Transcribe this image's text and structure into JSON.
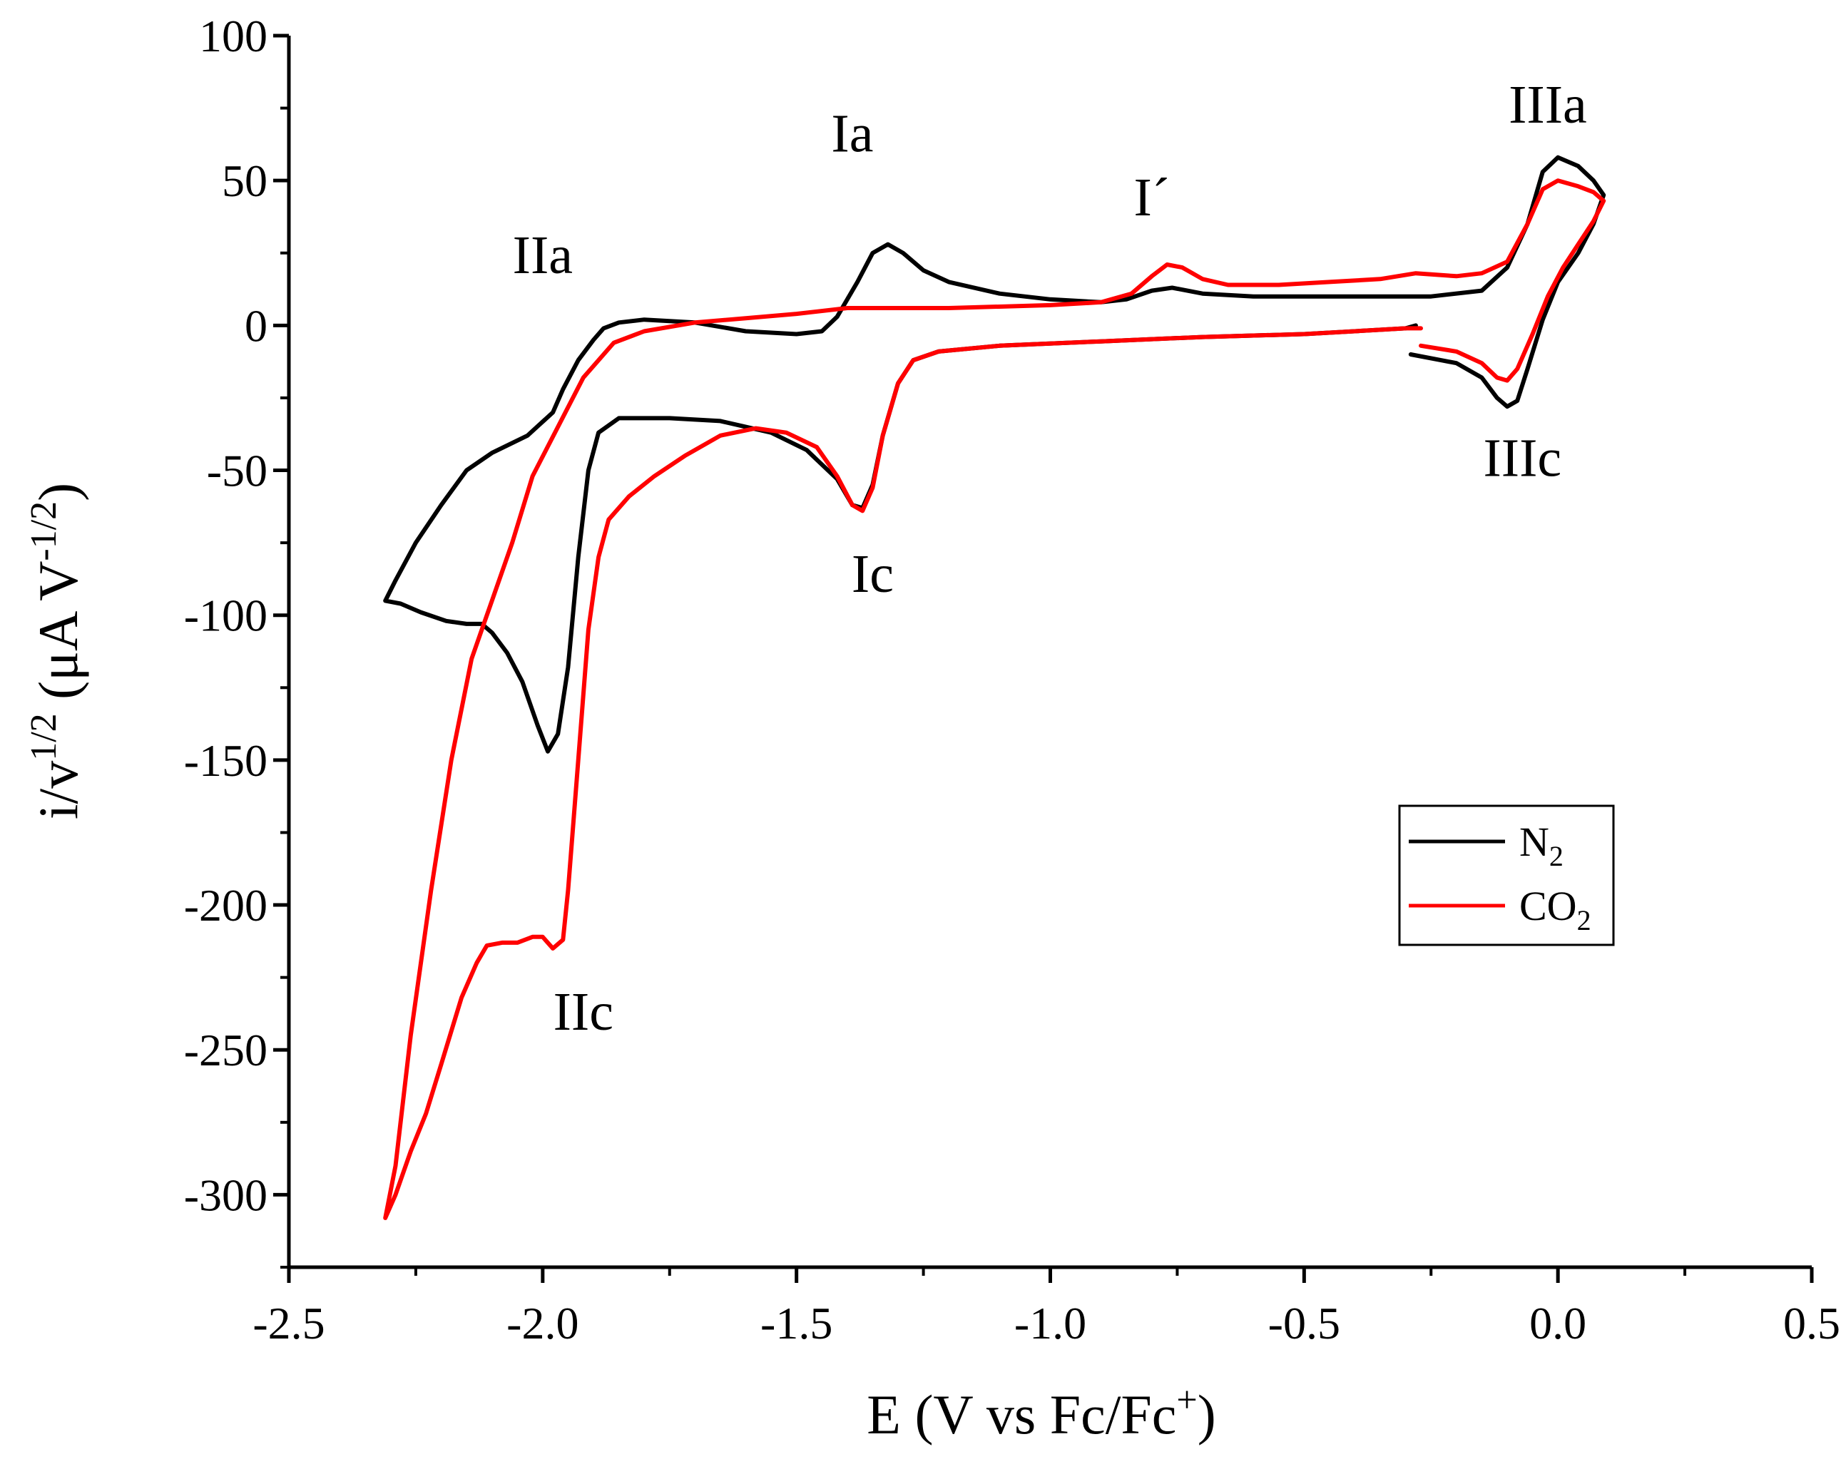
{
  "chart_data": {
    "type": "line",
    "title": "",
    "xlabel": {
      "main": "E (V vs Fc/Fc",
      "sup": "+",
      "end": ")"
    },
    "ylabel": {
      "p1": "i/v",
      "sup1": "1/2",
      "p2": " (μA V",
      "sup2": "-1/2",
      "p3": ")"
    },
    "xlim": [
      -2.5,
      0.5
    ],
    "ylim": [
      -325,
      100
    ],
    "xticks": [
      -2.5,
      -2.0,
      -1.5,
      -1.0,
      -0.5,
      0.0,
      0.5
    ],
    "xtick_labels": [
      "-2.5",
      "-2.0",
      "-1.5",
      "-1.0",
      "-0.5",
      "0.0",
      "0.5"
    ],
    "yticks": [
      -300,
      -250,
      -200,
      -150,
      -100,
      -50,
      0,
      50,
      100
    ],
    "ytick_labels": [
      "-300",
      "-250",
      "-200",
      "-150",
      "-100",
      "-50",
      "0",
      "50",
      "100"
    ],
    "legend_position": "right-middle",
    "series": [
      {
        "name": "N",
        "name_sub": "2",
        "color": "#000000",
        "points": [
          [
            -0.29,
            -10
          ],
          [
            -0.2,
            -13
          ],
          [
            -0.15,
            -18
          ],
          [
            -0.12,
            -25
          ],
          [
            -0.1,
            -28
          ],
          [
            -0.08,
            -26
          ],
          [
            -0.06,
            -15
          ],
          [
            -0.03,
            2
          ],
          [
            0.0,
            15
          ],
          [
            0.04,
            25
          ],
          [
            0.07,
            35
          ],
          [
            0.09,
            45
          ],
          [
            0.07,
            50
          ],
          [
            0.04,
            55
          ],
          [
            0.0,
            58
          ],
          [
            -0.03,
            53
          ],
          [
            -0.06,
            35
          ],
          [
            -0.1,
            20
          ],
          [
            -0.15,
            12
          ],
          [
            -0.25,
            10
          ],
          [
            -0.4,
            10
          ],
          [
            -0.6,
            10
          ],
          [
            -0.7,
            11
          ],
          [
            -0.76,
            13
          ],
          [
            -0.8,
            12
          ],
          [
            -0.85,
            9
          ],
          [
            -0.9,
            8
          ],
          [
            -1.0,
            9
          ],
          [
            -1.1,
            11
          ],
          [
            -1.2,
            15
          ],
          [
            -1.25,
            19
          ],
          [
            -1.29,
            25
          ],
          [
            -1.32,
            28
          ],
          [
            -1.35,
            25
          ],
          [
            -1.38,
            15
          ],
          [
            -1.42,
            3
          ],
          [
            -1.45,
            -2
          ],
          [
            -1.5,
            -3
          ],
          [
            -1.6,
            -2
          ],
          [
            -1.7,
            1
          ],
          [
            -1.8,
            2
          ],
          [
            -1.85,
            1
          ],
          [
            -1.88,
            -1
          ],
          [
            -1.9,
            -5
          ],
          [
            -1.93,
            -12
          ],
          [
            -1.96,
            -22
          ],
          [
            -1.98,
            -30
          ],
          [
            -2.03,
            -38
          ],
          [
            -2.1,
            -44
          ],
          [
            -2.15,
            -50
          ],
          [
            -2.2,
            -62
          ],
          [
            -2.25,
            -75
          ],
          [
            -2.29,
            -88
          ],
          [
            -2.31,
            -95
          ],
          [
            -2.28,
            -96
          ],
          [
            -2.24,
            -99
          ],
          [
            -2.19,
            -102
          ],
          [
            -2.15,
            -103
          ],
          [
            -2.12,
            -103
          ],
          [
            -2.1,
            -106
          ],
          [
            -2.07,
            -113
          ],
          [
            -2.04,
            -123
          ],
          [
            -2.01,
            -138
          ],
          [
            -1.99,
            -147
          ],
          [
            -1.97,
            -141
          ],
          [
            -1.95,
            -118
          ],
          [
            -1.93,
            -80
          ],
          [
            -1.91,
            -50
          ],
          [
            -1.89,
            -37
          ],
          [
            -1.85,
            -32
          ],
          [
            -1.75,
            -32
          ],
          [
            -1.65,
            -33
          ],
          [
            -1.55,
            -37
          ],
          [
            -1.48,
            -43
          ],
          [
            -1.42,
            -53
          ],
          [
            -1.39,
            -62
          ],
          [
            -1.37,
            -63
          ],
          [
            -1.35,
            -55
          ],
          [
            -1.33,
            -38
          ],
          [
            -1.3,
            -20
          ],
          [
            -1.27,
            -12
          ],
          [
            -1.22,
            -9
          ],
          [
            -1.1,
            -7
          ],
          [
            -0.9,
            -5.5
          ],
          [
            -0.7,
            -4
          ],
          [
            -0.5,
            -3
          ],
          [
            -0.3,
            -1
          ],
          [
            -0.28,
            0
          ]
        ]
      },
      {
        "name": "CO",
        "name_sub": "2",
        "color": "#ff0000",
        "points": [
          [
            -0.27,
            -7
          ],
          [
            -0.2,
            -9
          ],
          [
            -0.15,
            -13
          ],
          [
            -0.12,
            -18
          ],
          [
            -0.1,
            -19
          ],
          [
            -0.08,
            -15
          ],
          [
            -0.05,
            -3
          ],
          [
            -0.02,
            10
          ],
          [
            0.01,
            20
          ],
          [
            0.04,
            28
          ],
          [
            0.07,
            36
          ],
          [
            0.09,
            43
          ],
          [
            0.07,
            46
          ],
          [
            0.04,
            48
          ],
          [
            0.0,
            50
          ],
          [
            -0.03,
            47
          ],
          [
            -0.06,
            35
          ],
          [
            -0.1,
            22
          ],
          [
            -0.15,
            18
          ],
          [
            -0.2,
            17
          ],
          [
            -0.28,
            18
          ],
          [
            -0.35,
            16
          ],
          [
            -0.45,
            15
          ],
          [
            -0.55,
            14
          ],
          [
            -0.65,
            14
          ],
          [
            -0.7,
            16
          ],
          [
            -0.74,
            20
          ],
          [
            -0.77,
            21
          ],
          [
            -0.8,
            17
          ],
          [
            -0.84,
            11
          ],
          [
            -0.9,
            8
          ],
          [
            -1.0,
            7
          ],
          [
            -1.2,
            6
          ],
          [
            -1.4,
            6
          ],
          [
            -1.5,
            4
          ],
          [
            -1.6,
            2.5
          ],
          [
            -1.7,
            1
          ],
          [
            -1.8,
            -2
          ],
          [
            -1.86,
            -6
          ],
          [
            -1.92,
            -18
          ],
          [
            -1.97,
            -35
          ],
          [
            -2.02,
            -52
          ],
          [
            -2.06,
            -75
          ],
          [
            -2.1,
            -95
          ],
          [
            -2.14,
            -115
          ],
          [
            -2.18,
            -150
          ],
          [
            -2.22,
            -195
          ],
          [
            -2.26,
            -245
          ],
          [
            -2.29,
            -290
          ],
          [
            -2.31,
            -308
          ],
          [
            -2.29,
            -300
          ],
          [
            -2.26,
            -285
          ],
          [
            -2.23,
            -272
          ],
          [
            -2.2,
            -255
          ],
          [
            -2.16,
            -232
          ],
          [
            -2.13,
            -220
          ],
          [
            -2.11,
            -214
          ],
          [
            -2.08,
            -213
          ],
          [
            -2.05,
            -213
          ],
          [
            -2.02,
            -211
          ],
          [
            -2.0,
            -211
          ],
          [
            -1.98,
            -215
          ],
          [
            -1.96,
            -212
          ],
          [
            -1.95,
            -195
          ],
          [
            -1.93,
            -150
          ],
          [
            -1.91,
            -105
          ],
          [
            -1.89,
            -80
          ],
          [
            -1.87,
            -67
          ],
          [
            -1.83,
            -59
          ],
          [
            -1.78,
            -52
          ],
          [
            -1.72,
            -45
          ],
          [
            -1.65,
            -38
          ],
          [
            -1.58,
            -35.5
          ],
          [
            -1.52,
            -37
          ],
          [
            -1.46,
            -42
          ],
          [
            -1.42,
            -52
          ],
          [
            -1.39,
            -62
          ],
          [
            -1.37,
            -64
          ],
          [
            -1.35,
            -56
          ],
          [
            -1.33,
            -38
          ],
          [
            -1.3,
            -20
          ],
          [
            -1.27,
            -12
          ],
          [
            -1.22,
            -9
          ],
          [
            -1.1,
            -7
          ],
          [
            -0.9,
            -5.5
          ],
          [
            -0.7,
            -4
          ],
          [
            -0.5,
            -3
          ],
          [
            -0.3,
            -1
          ],
          [
            -0.27,
            -1
          ]
        ]
      }
    ],
    "annotations": [
      {
        "text": "IIa",
        "x": -2.0,
        "y": 18
      },
      {
        "text": "Ia",
        "x": -1.39,
        "y": 60
      },
      {
        "text": "I´",
        "x": -0.8,
        "y": 38
      },
      {
        "text": "IIIa",
        "x": -0.02,
        "y": 70
      },
      {
        "text": "Ic",
        "x": -1.35,
        "y": -92
      },
      {
        "text": "IIIc",
        "x": -0.07,
        "y": -52
      },
      {
        "text": "IIc",
        "x": -1.92,
        "y": -243
      }
    ]
  }
}
